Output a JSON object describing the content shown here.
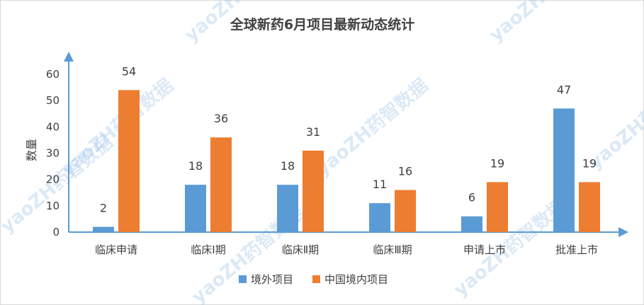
{
  "chart_data": {
    "type": "bar",
    "title": "全球新药6月项目最新动态统计",
    "ylabel": "数量",
    "xlabel": "",
    "ylim": [
      0,
      60
    ],
    "yticks": [
      0,
      10,
      20,
      30,
      40,
      50,
      60
    ],
    "categories": [
      "临床申请",
      "临床Ⅰ期",
      "临床Ⅱ期",
      "临床Ⅲ期",
      "申请上市",
      "批准上市"
    ],
    "series": [
      {
        "name": "境外项目",
        "color": "#5b9bd5",
        "values": [
          2,
          18,
          18,
          11,
          6,
          47
        ]
      },
      {
        "name": "中国境内项目",
        "color": "#ed7d31",
        "values": [
          54,
          36,
          31,
          16,
          19,
          19
        ]
      }
    ],
    "legend_position": "bottom",
    "grid": false
  },
  "watermark": "yaoZH药智数据"
}
